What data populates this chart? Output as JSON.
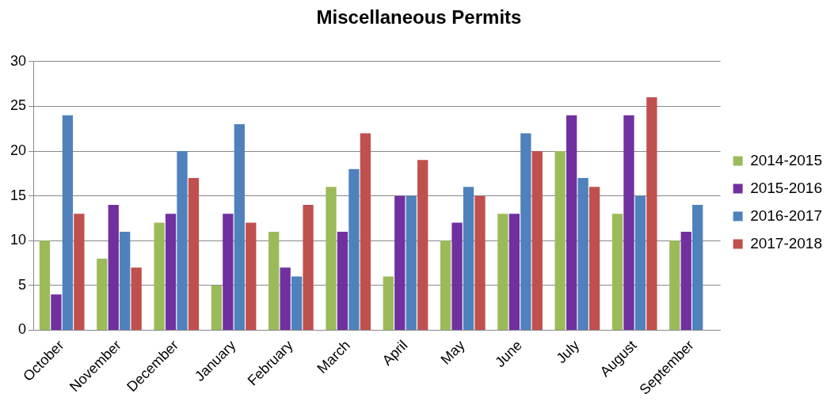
{
  "chart_data": {
    "type": "bar",
    "title": "Miscellaneous Permits",
    "categories": [
      "October",
      "November",
      "December",
      "January",
      "February",
      "March",
      "April",
      "May",
      "June",
      "July",
      "August",
      "September"
    ],
    "series": [
      {
        "name": "2014-2015",
        "color": "#9bbb59",
        "values": [
          10,
          8,
          12,
          5,
          11,
          16,
          6,
          10,
          13,
          20,
          13,
          10
        ]
      },
      {
        "name": "2015-2016",
        "color": "#7030a0",
        "values": [
          4,
          14,
          13,
          13,
          7,
          11,
          15,
          12,
          13,
          24,
          24,
          11
        ]
      },
      {
        "name": "2016-2017",
        "color": "#4f81bd",
        "values": [
          24,
          11,
          20,
          23,
          6,
          18,
          15,
          16,
          22,
          17,
          15,
          14
        ]
      },
      {
        "name": "2017-2018",
        "color": "#c0504d",
        "values": [
          13,
          7,
          17,
          12,
          14,
          22,
          19,
          15,
          20,
          16,
          26,
          null
        ]
      }
    ],
    "ylim": [
      0,
      30
    ],
    "yticks": [
      0,
      5,
      10,
      15,
      20,
      25,
      30
    ],
    "grid": "y",
    "legend": "right"
  }
}
